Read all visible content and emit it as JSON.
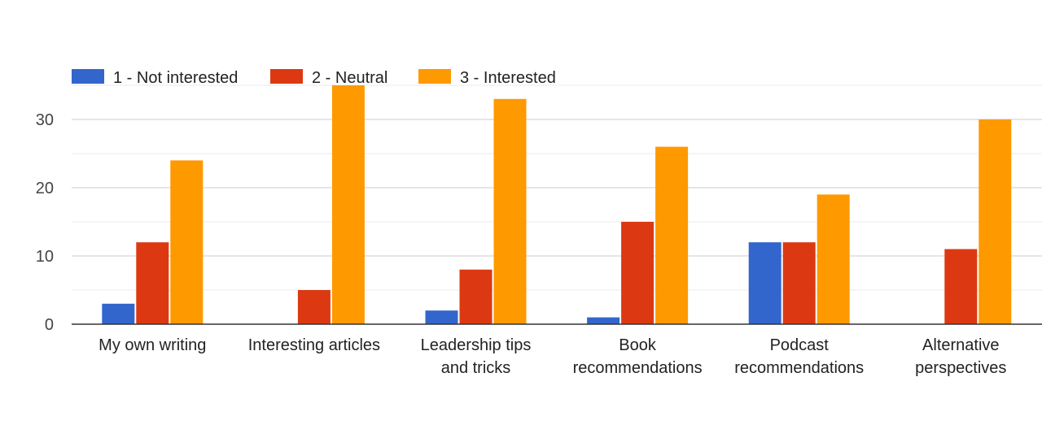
{
  "chart_data": {
    "type": "bar",
    "categories": [
      [
        "My own writing"
      ],
      [
        "Interesting articles"
      ],
      [
        "Leadership tips",
        "and tricks"
      ],
      [
        "Book",
        "recommendations"
      ],
      [
        "Podcast",
        "recommendations"
      ],
      [
        "Alternative",
        "perspectives"
      ]
    ],
    "series": [
      {
        "name": "1 - Not interested",
        "color": "#3366cc",
        "values": [
          3,
          0,
          2,
          1,
          12,
          0
        ]
      },
      {
        "name": "2 - Neutral",
        "color": "#dc3912",
        "values": [
          12,
          5,
          8,
          15,
          12,
          11
        ]
      },
      {
        "name": "3 - Interested",
        "color": "#ff9900",
        "values": [
          24,
          35,
          33,
          26,
          19,
          30
        ]
      }
    ],
    "yticks": [
      0,
      10,
      20,
      30
    ],
    "ylim": [
      0,
      35
    ],
    "grid": true,
    "legend": "top-left"
  }
}
